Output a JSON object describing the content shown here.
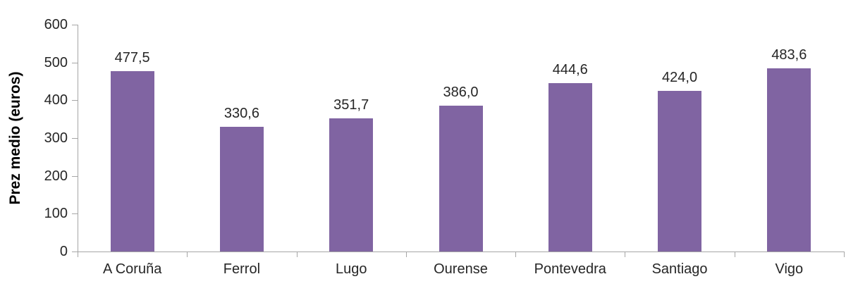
{
  "chart_data": {
    "type": "bar",
    "title": "",
    "xlabel": "",
    "ylabel": "Prez medio (euros)",
    "categories": [
      "A Coruña",
      "Ferrol",
      "Lugo",
      "Ourense",
      "Pontevedra",
      "Santiago",
      "Vigo"
    ],
    "values": [
      477.5,
      330.6,
      351.7,
      386.0,
      444.6,
      424.0,
      483.6
    ],
    "value_labels": [
      "477,5",
      "330,6",
      "351,7",
      "386,0",
      "444,6",
      "424,0",
      "483,6"
    ],
    "ylim": [
      0,
      600
    ],
    "ytick_interval": 100,
    "ytick_labels": [
      "0",
      "100",
      "200",
      "300",
      "400",
      "500",
      "600"
    ],
    "grid": false,
    "legend_position": "none",
    "bar_color": "#8064A2",
    "axis_color": "#a6a6a6",
    "text_color": "#262626"
  }
}
